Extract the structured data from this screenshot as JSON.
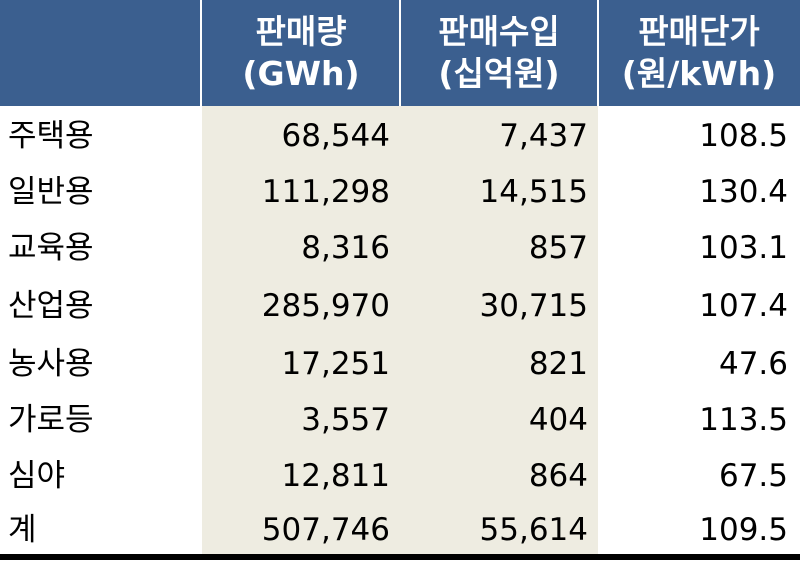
{
  "header": {
    "col1": {
      "line1": "판매량",
      "line2": "(GWh)"
    },
    "col2": {
      "line1": "판매수입",
      "line2": "(십억원)"
    },
    "col3": {
      "line1": "판매단가",
      "line2": "(원/kWh)"
    }
  },
  "rows": [
    {
      "label": "주택용",
      "volume": "68,544",
      "revenue": "7,437",
      "unit_price": "108.5"
    },
    {
      "label": "일반용",
      "volume": "111,298",
      "revenue": "14,515",
      "unit_price": "130.4"
    },
    {
      "label": "교육용",
      "volume": "8,316",
      "revenue": "857",
      "unit_price": "103.1"
    },
    {
      "label": "산업용",
      "volume": "285,970",
      "revenue": "30,715",
      "unit_price": "107.4"
    },
    {
      "label": "농사용",
      "volume": "17,251",
      "revenue": "821",
      "unit_price": "47.6"
    },
    {
      "label": "가로등",
      "volume": "3,557",
      "revenue": "404",
      "unit_price": "113.5"
    },
    {
      "label": "심야",
      "volume": "12,811",
      "revenue": "864",
      "unit_price": "67.5"
    },
    {
      "label": "계",
      "volume": "507,746",
      "revenue": "55,614",
      "unit_price": "109.5"
    }
  ],
  "colors": {
    "header_bg": "#3b5f8f",
    "shade": "#eeece1"
  }
}
